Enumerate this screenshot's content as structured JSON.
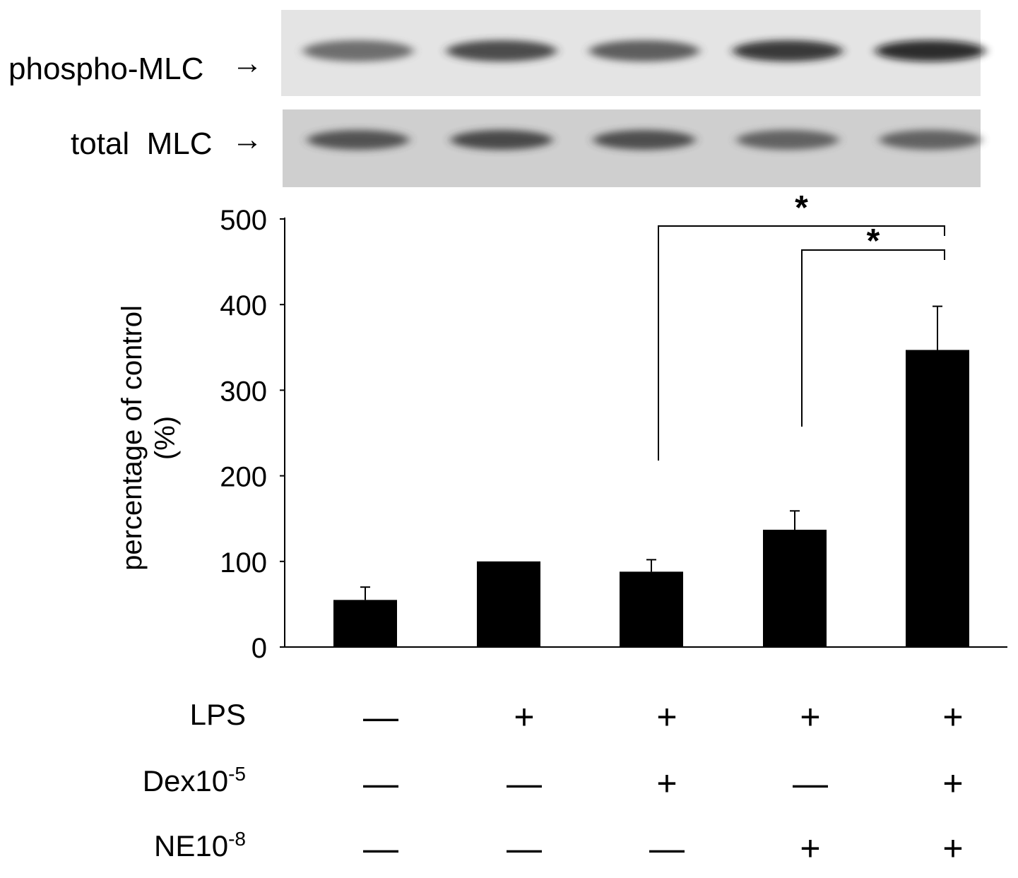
{
  "blot": {
    "rows": [
      {
        "label": "phospho-MLC",
        "arrow": "→",
        "band_darkness": [
          0.55,
          0.75,
          0.65,
          0.85,
          0.95
        ]
      },
      {
        "label": "total  MLC",
        "arrow": "→",
        "band_darkness": [
          0.7,
          0.75,
          0.72,
          0.6,
          0.6
        ]
      }
    ]
  },
  "chart_data": {
    "type": "bar",
    "ylabel": "percentage of control",
    "ylabel_unit": "(%)",
    "ylim": [
      0,
      500
    ],
    "yticks": [
      "0",
      "100",
      "200",
      "300",
      "400",
      "500"
    ],
    "bar_color": "#000000",
    "values": [
      55,
      100,
      88,
      137,
      347
    ],
    "errors": [
      15,
      0,
      14,
      22,
      51
    ],
    "significance": [
      {
        "from": 2,
        "to": 4,
        "label": "*"
      },
      {
        "from": 3,
        "to": 4,
        "label": "*"
      }
    ],
    "treatments": [
      {
        "name": "LPS",
        "superscript": "",
        "signs": [
          "—",
          "+",
          "+",
          "+",
          "+"
        ]
      },
      {
        "name": "Dex10",
        "superscript": "-5",
        "signs": [
          "—",
          "—",
          "+",
          "—",
          "+"
        ]
      },
      {
        "name": "NE10",
        "superscript": "-8",
        "signs": [
          "—",
          "—",
          "—",
          "+",
          "+"
        ]
      }
    ]
  }
}
